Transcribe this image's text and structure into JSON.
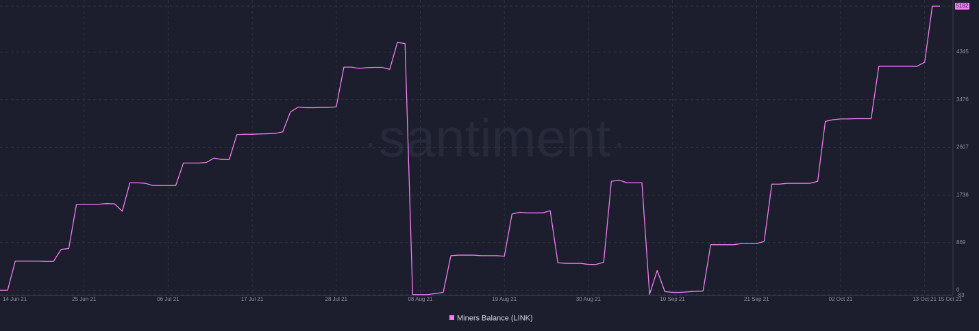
{
  "chart_data": {
    "type": "line",
    "watermark": "santiment",
    "x": [
      "2021-06-14",
      "2021-06-15",
      "2021-06-16",
      "2021-06-17",
      "2021-06-18",
      "2021-06-19",
      "2021-06-20",
      "2021-06-21",
      "2021-06-22",
      "2021-06-23",
      "2021-06-24",
      "2021-06-25",
      "2021-06-26",
      "2021-06-27",
      "2021-06-28",
      "2021-06-29",
      "2021-06-30",
      "2021-07-01",
      "2021-07-02",
      "2021-07-03",
      "2021-07-04",
      "2021-07-05",
      "2021-07-06",
      "2021-07-07",
      "2021-07-08",
      "2021-07-09",
      "2021-07-10",
      "2021-07-11",
      "2021-07-12",
      "2021-07-13",
      "2021-07-14",
      "2021-07-15",
      "2021-07-16",
      "2021-07-17",
      "2021-07-18",
      "2021-07-19",
      "2021-07-20",
      "2021-07-21",
      "2021-07-22",
      "2021-07-23",
      "2021-07-24",
      "2021-07-25",
      "2021-07-26",
      "2021-07-27",
      "2021-07-28",
      "2021-07-29",
      "2021-07-30",
      "2021-07-31",
      "2021-08-01",
      "2021-08-02",
      "2021-08-03",
      "2021-08-04",
      "2021-08-05",
      "2021-08-06",
      "2021-08-07",
      "2021-08-08",
      "2021-08-09",
      "2021-08-10",
      "2021-08-11",
      "2021-08-12",
      "2021-08-13",
      "2021-08-14",
      "2021-08-15",
      "2021-08-16",
      "2021-08-17",
      "2021-08-18",
      "2021-08-19",
      "2021-08-20",
      "2021-08-21",
      "2021-08-22",
      "2021-08-23",
      "2021-08-24",
      "2021-08-25",
      "2021-08-26",
      "2021-08-27",
      "2021-08-28",
      "2021-08-29",
      "2021-08-30",
      "2021-08-31",
      "2021-09-01",
      "2021-09-02",
      "2021-09-03",
      "2021-09-04",
      "2021-09-05",
      "2021-09-06",
      "2021-09-07",
      "2021-09-08",
      "2021-09-09",
      "2021-09-10",
      "2021-09-11",
      "2021-09-12",
      "2021-09-13",
      "2021-09-14",
      "2021-09-15",
      "2021-09-16",
      "2021-09-17",
      "2021-09-18",
      "2021-09-19",
      "2021-09-20",
      "2021-09-21",
      "2021-09-22",
      "2021-09-23",
      "2021-09-24",
      "2021-09-25",
      "2021-09-26",
      "2021-09-27",
      "2021-09-28",
      "2021-09-29",
      "2021-09-30",
      "2021-10-01",
      "2021-10-02",
      "2021-10-03",
      "2021-10-04",
      "2021-10-05",
      "2021-10-06",
      "2021-10-07",
      "2021-10-08",
      "2021-10-09",
      "2021-10-10",
      "2021-10-11",
      "2021-10-12",
      "2021-10-13",
      "2021-10-14",
      "2021-10-15"
    ],
    "series": [
      {
        "name": "Miners Balance (LINK)",
        "color": "#f37ff3",
        "values": [
          0,
          0,
          530,
          530,
          530,
          530,
          525,
          525,
          745,
          760,
          1564,
          1564,
          1564,
          1570,
          1580,
          1575,
          1440,
          1960,
          1960,
          1950,
          1910,
          1910,
          1910,
          1910,
          2320,
          2320,
          2320,
          2330,
          2410,
          2385,
          2385,
          2840,
          2845,
          2845,
          2850,
          2855,
          2860,
          2890,
          3250,
          3340,
          3330,
          3330,
          3335,
          3335,
          3345,
          4070,
          4070,
          4045,
          4060,
          4065,
          4065,
          4030,
          4520,
          4500,
          -80,
          -80,
          -80,
          -60,
          -40,
          630,
          640,
          640,
          640,
          630,
          630,
          630,
          620,
          1390,
          1420,
          1410,
          1410,
          1410,
          1450,
          500,
          490,
          490,
          490,
          470,
          470,
          510,
          1985,
          2010,
          1960,
          1960,
          1960,
          -75,
          360,
          -25,
          -40,
          -40,
          -30,
          -20,
          -15,
          830,
          830,
          830,
          830,
          850,
          850,
          850,
          890,
          1935,
          1935,
          1950,
          1950,
          1950,
          1950,
          1985,
          3080,
          3110,
          3125,
          3125,
          3130,
          3130,
          3130,
          4085,
          4085,
          4085,
          4085,
          4085,
          4085,
          4160,
          5182,
          5182
        ]
      }
    ],
    "xlim": [
      "2021-06-14",
      "2021-10-15"
    ],
    "xticks": [
      {
        "value": "2021-06-14",
        "label": "14 Jun 21"
      },
      {
        "value": "2021-06-25",
        "label": "25 Jun 21"
      },
      {
        "value": "2021-07-06",
        "label": "06 Jul 21"
      },
      {
        "value": "2021-07-17",
        "label": "17 Jul 21"
      },
      {
        "value": "2021-07-28",
        "label": "28 Jul 21"
      },
      {
        "value": "2021-08-08",
        "label": "08 Aug 21"
      },
      {
        "value": "2021-08-19",
        "label": "19 Aug 21"
      },
      {
        "value": "2021-08-30",
        "label": "30 Aug 21"
      },
      {
        "value": "2021-09-10",
        "label": "10 Sep 21"
      },
      {
        "value": "2021-09-21",
        "label": "21 Sep 21"
      },
      {
        "value": "2021-10-02",
        "label": "02 Oct 21"
      },
      {
        "value": "2021-10-13",
        "label": "13 Oct 21"
      },
      {
        "value": "2021-10-15",
        "label": "15 Oct 21"
      }
    ],
    "ylim": [
      -83,
      5182
    ],
    "yticks": [
      -83,
      0,
      869,
      1736,
      2607,
      3476,
      4345,
      5182
    ],
    "grid": true
  }
}
